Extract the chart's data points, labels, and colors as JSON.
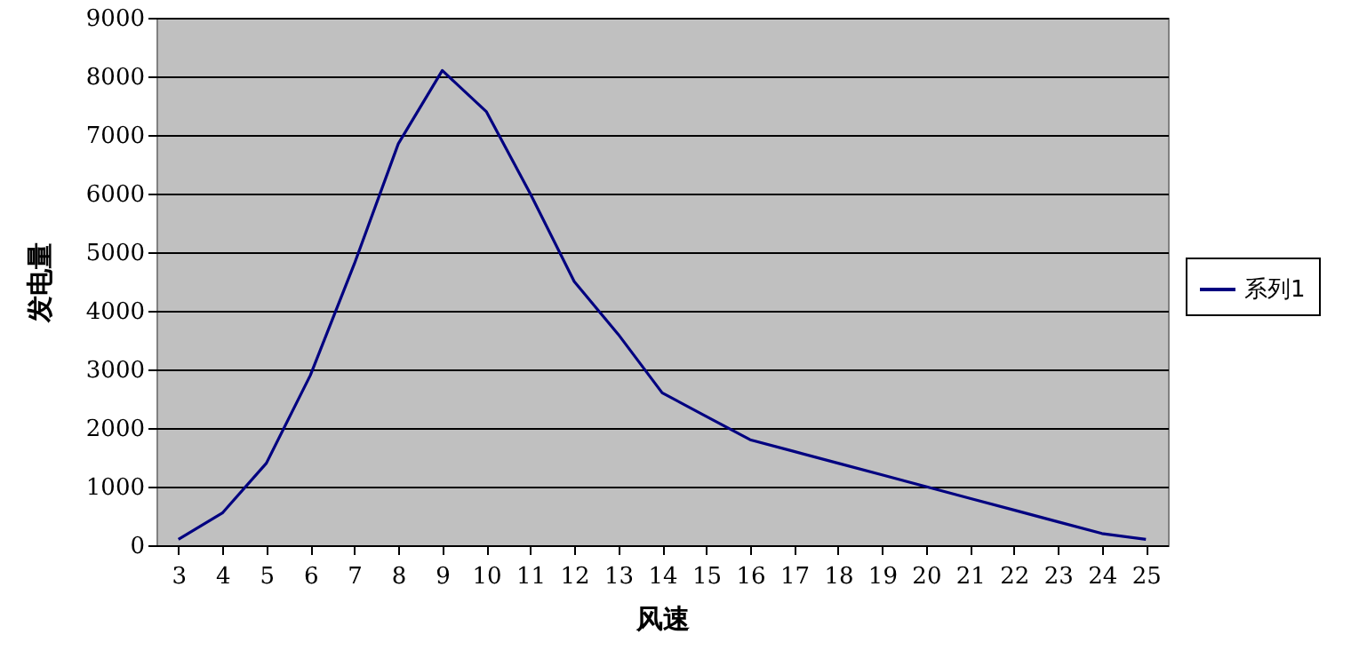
{
  "chart_data": {
    "type": "line",
    "xlabel": "风速",
    "ylabel": "发电量",
    "categories": [
      "3",
      "4",
      "5",
      "6",
      "7",
      "8",
      "9",
      "10",
      "11",
      "12",
      "13",
      "14",
      "15",
      "16",
      "17",
      "18",
      "19",
      "20",
      "21",
      "22",
      "23",
      "24",
      "25"
    ],
    "series": [
      {
        "name": "系列1",
        "color": "#000080",
        "values": [
          100,
          550,
          1400,
          2900,
          4800,
          6850,
          8100,
          7400,
          6000,
          4500,
          3600,
          2600,
          2200,
          1800,
          1600,
          1400,
          1200,
          1000,
          800,
          600,
          400,
          200,
          100
        ]
      }
    ],
    "ylim": [
      0,
      9000
    ],
    "yticks": [
      0,
      1000,
      2000,
      3000,
      4000,
      5000,
      6000,
      7000,
      8000,
      9000
    ],
    "grid": "y",
    "legend": "right",
    "marker": "none",
    "line_style": "solid"
  }
}
